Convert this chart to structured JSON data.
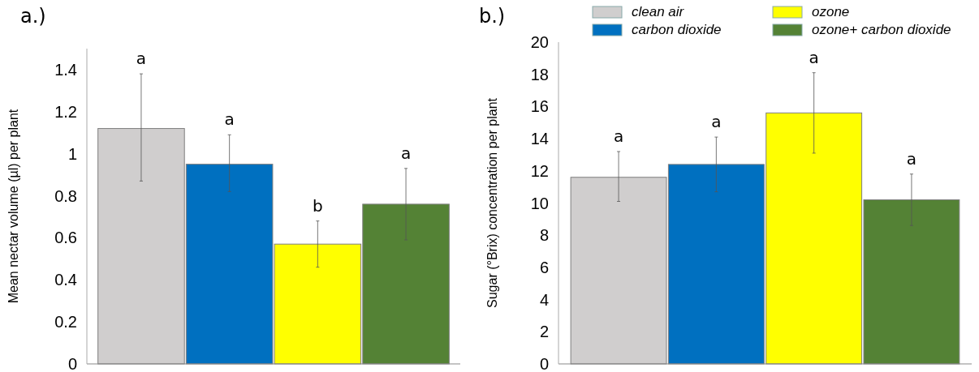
{
  "chart_data": [
    {
      "type": "bar",
      "title": "a.)",
      "ylabel": "Mean nectar volume (µl) per plant",
      "categories": [
        null
      ],
      "ylim": [
        0,
        1.5
      ],
      "yticks": [
        0,
        0.2,
        0.4,
        0.6,
        0.8,
        1,
        1.2,
        1.4
      ],
      "grid": false,
      "legend": false,
      "annotations": [
        "a",
        "a",
        "b",
        "a"
      ],
      "series": [
        {
          "color": "#d0cece",
          "values": [
            1.12
          ],
          "errors": [
            [
              0.87,
              1.38
            ]
          ]
        },
        {
          "color": "#0070c0",
          "values": [
            0.95
          ],
          "errors": [
            [
              0.82,
              1.09
            ]
          ]
        },
        {
          "color": "#ffff00",
          "values": [
            0.57
          ],
          "errors": [
            [
              0.46,
              0.68
            ]
          ]
        },
        {
          "color": "#548235",
          "values": [
            0.76
          ],
          "errors": [
            [
              0.59,
              0.93
            ]
          ]
        }
      ]
    },
    {
      "type": "bar",
      "title": "b.)",
      "ylabel": "Sugar (°Brix) concentration per plant",
      "categories": [
        null
      ],
      "ylim": [
        0,
        20
      ],
      "yticks": [
        0,
        2,
        4,
        6,
        8,
        10,
        12,
        14,
        16,
        18,
        20
      ],
      "grid": false,
      "legend": "top",
      "annotations": [
        "a",
        "a",
        "a",
        "a"
      ],
      "series": [
        {
          "name": "clean air",
          "color": "#d0cece",
          "values": [
            11.6
          ],
          "errors": [
            [
              10.1,
              13.2
            ]
          ]
        },
        {
          "name": "carbon dioxide",
          "color": "#0070c0",
          "values": [
            12.4
          ],
          "errors": [
            [
              10.7,
              14.1
            ]
          ]
        },
        {
          "name": "ozone",
          "color": "#ffff00",
          "values": [
            15.6
          ],
          "errors": [
            [
              13.1,
              18.1
            ]
          ]
        },
        {
          "name": "ozone+ carbon dioxide",
          "color": "#548235",
          "values": [
            10.2
          ],
          "errors": [
            [
              8.6,
              11.8
            ]
          ]
        }
      ]
    }
  ]
}
